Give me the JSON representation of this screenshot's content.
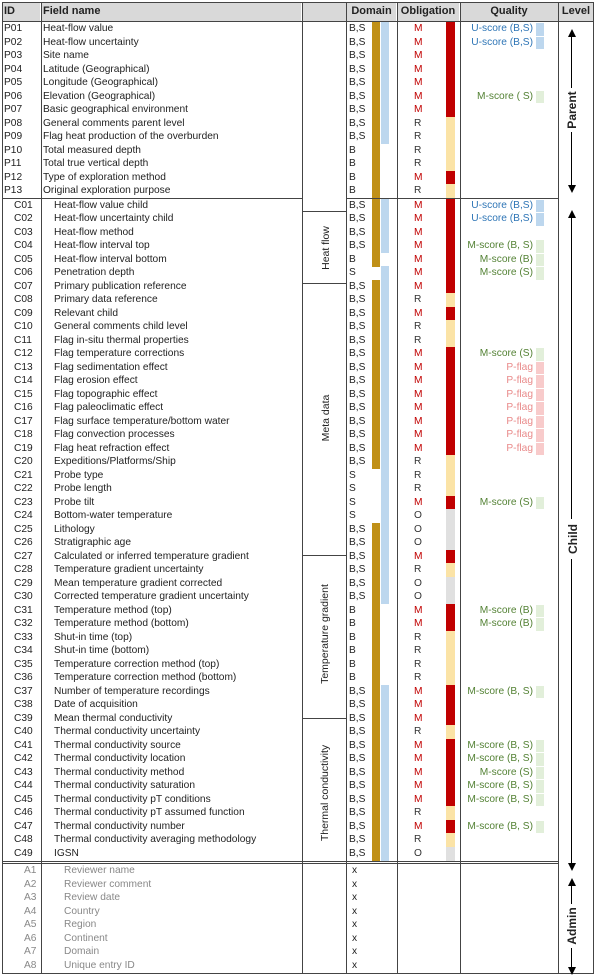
{
  "headers": {
    "id": "ID",
    "field": "Field name",
    "domain": "Domain",
    "obligation": "Obligation",
    "quality": "Quality",
    "level": "Level"
  },
  "groups": {
    "heat_flow": "Heat flow",
    "meta_data": "Meta data",
    "temp_gradient": "Temperature gradient",
    "thermal_cond": "Thermal conductivity"
  },
  "levels": {
    "parent": "Parent",
    "child": "Child",
    "admin": "Admin"
  },
  "colors": {
    "M": "#c00000",
    "R": "#fbe3a6",
    "O": "#e0e0e0",
    "B": "#c09017",
    "S": "#bdd7ee",
    "U": "#bdd7ee",
    "Mscore": "#e2efda",
    "Pflag": "#f8cbcb"
  },
  "rows": [
    {
      "id": "P01",
      "field": "Heat-flow value",
      "domain": "B,S",
      "obl": "M",
      "q": "U-score (B,S)"
    },
    {
      "id": "P02",
      "field": "Heat-flow uncertainty",
      "domain": "B,S",
      "obl": "M",
      "q": "U-score (B,S)"
    },
    {
      "id": "P03",
      "field": "Site name",
      "domain": "B,S",
      "obl": "M",
      "q": ""
    },
    {
      "id": "P04",
      "field": "Latitude (Geographical)",
      "domain": "B,S",
      "obl": "M",
      "q": ""
    },
    {
      "id": "P05",
      "field": "Longitude (Geographical)",
      "domain": "B,S",
      "obl": "M",
      "q": ""
    },
    {
      "id": "P06",
      "field": "Elevation (Geographical)",
      "domain": "B,S",
      "obl": "M",
      "q": "M-score ( S)"
    },
    {
      "id": "P07",
      "field": "Basic geographical environment",
      "domain": "B,S",
      "obl": "M",
      "q": ""
    },
    {
      "id": "P08",
      "field": "General comments parent level",
      "domain": "B,S",
      "obl": "R",
      "q": ""
    },
    {
      "id": "P09",
      "field": "Flag heat production of the overburden",
      "domain": "B,S",
      "obl": "R",
      "q": ""
    },
    {
      "id": "P10",
      "field": "Total measured depth",
      "domain": "B",
      "obl": "R",
      "q": ""
    },
    {
      "id": "P11",
      "field": "Total true vertical depth",
      "domain": "B",
      "obl": "R",
      "q": ""
    },
    {
      "id": "P12",
      "field": "Type of exploration method",
      "domain": "B",
      "obl": "M",
      "q": ""
    },
    {
      "id": "P13",
      "field": "Original exploration purpose",
      "domain": "B",
      "obl": "R",
      "q": ""
    },
    {
      "id": "C01",
      "field": "Heat-flow value child",
      "domain": "B,S",
      "obl": "M",
      "q": "U-score (B,S)"
    },
    {
      "id": "C02",
      "field": "Heat-flow uncertainty child",
      "domain": "B,S",
      "obl": "M",
      "q": "U-score (B,S)"
    },
    {
      "id": "C03",
      "field": "Heat-flow method",
      "domain": "B,S",
      "obl": "M",
      "q": ""
    },
    {
      "id": "C04",
      "field": "Heat-flow interval top",
      "domain": "B,S",
      "obl": "M",
      "q": "M-score (B, S)"
    },
    {
      "id": "C05",
      "field": "Heat-flow interval bottom",
      "domain": "B",
      "obl": "M",
      "q": "M-score (B)"
    },
    {
      "id": "C06",
      "field": "Penetration depth",
      "domain": "S",
      "obl": "M",
      "q": "M-score (S)"
    },
    {
      "id": "C07",
      "field": "Primary publication reference",
      "domain": "B,S",
      "obl": "M",
      "q": ""
    },
    {
      "id": "C08",
      "field": "Primary data reference",
      "domain": "B,S",
      "obl": "R",
      "q": ""
    },
    {
      "id": "C09",
      "field": "Relevant child",
      "domain": "B,S",
      "obl": "M",
      "q": ""
    },
    {
      "id": "C10",
      "field": "General comments child level",
      "domain": "B,S",
      "obl": "R",
      "q": ""
    },
    {
      "id": "C11",
      "field": "Flag in-situ thermal properties",
      "domain": "B,S",
      "obl": "R",
      "q": ""
    },
    {
      "id": "C12",
      "field": "Flag temperature corrections",
      "domain": "B,S",
      "obl": "M",
      "q": "M-score (S)"
    },
    {
      "id": "C13",
      "field": "Flag sedimentation effect",
      "domain": "B,S",
      "obl": "M",
      "q": "P-flag"
    },
    {
      "id": "C14",
      "field": "Flag erosion effect",
      "domain": "B,S",
      "obl": "M",
      "q": "P-flag"
    },
    {
      "id": "C15",
      "field": "Flag topographic effect",
      "domain": "B,S",
      "obl": "M",
      "q": "P-flag"
    },
    {
      "id": "C16",
      "field": "Flag paleoclimatic effect",
      "domain": "B,S",
      "obl": "M",
      "q": "P-flag"
    },
    {
      "id": "C17",
      "field": "Flag surface temperature/bottom water",
      "domain": "B,S",
      "obl": "M",
      "q": "P-flag"
    },
    {
      "id": "C18",
      "field": "Flag convection processes",
      "domain": "B,S",
      "obl": "M",
      "q": "P-flag"
    },
    {
      "id": "C19",
      "field": "Flag heat refraction effect",
      "domain": "B,S",
      "obl": "M",
      "q": "P-flag"
    },
    {
      "id": "C20",
      "field": "Expeditions/Platforms/Ship",
      "domain": "B,S",
      "obl": "R",
      "q": ""
    },
    {
      "id": "C21",
      "field": "Probe type",
      "domain": "S",
      "obl": "R",
      "q": ""
    },
    {
      "id": "C22",
      "field": "Probe length",
      "domain": "S",
      "obl": "R",
      "q": ""
    },
    {
      "id": "C23",
      "field": "Probe tilt",
      "domain": "S",
      "obl": "M",
      "q": "M-score (S)"
    },
    {
      "id": "C24",
      "field": "Bottom-water temperature",
      "domain": "S",
      "obl": "O",
      "q": ""
    },
    {
      "id": "C25",
      "field": "Lithology",
      "domain": "B,S",
      "obl": "O",
      "q": ""
    },
    {
      "id": "C26",
      "field": "Stratigraphic age",
      "domain": "B,S",
      "obl": "O",
      "q": ""
    },
    {
      "id": "C27",
      "field": "Calculated or inferred temperature gradient",
      "domain": "B,S",
      "obl": "M",
      "q": ""
    },
    {
      "id": "C28",
      "field": "Temperature gradient uncertainty",
      "domain": "B,S",
      "obl": "R",
      "q": ""
    },
    {
      "id": "C29",
      "field": "Mean temperature gradient corrected",
      "domain": "B,S",
      "obl": "O",
      "q": ""
    },
    {
      "id": "C30",
      "field": "Corrected temperature gradient uncertainty",
      "domain": "B,S",
      "obl": "O",
      "q": ""
    },
    {
      "id": "C31",
      "field": "Temperature method (top)",
      "domain": "B",
      "obl": "M",
      "q": "M-score (B)"
    },
    {
      "id": "C32",
      "field": "Temperature method (bottom)",
      "domain": "B",
      "obl": "M",
      "q": "M-score (B)"
    },
    {
      "id": "C33",
      "field": "Shut-in time (top)",
      "domain": "B",
      "obl": "R",
      "q": ""
    },
    {
      "id": "C34",
      "field": "Shut-in time (bottom)",
      "domain": "B",
      "obl": "R",
      "q": ""
    },
    {
      "id": "C35",
      "field": "Temperature correction method (top)",
      "domain": "B",
      "obl": "R",
      "q": ""
    },
    {
      "id": "C36",
      "field": "Temperature correction method (bottom)",
      "domain": "B",
      "obl": "R",
      "q": ""
    },
    {
      "id": "C37",
      "field": "Number of temperature recordings",
      "domain": "B,S",
      "obl": "M",
      "q": "M-score (B, S)"
    },
    {
      "id": "C38",
      "field": "Date of acquisition",
      "domain": "B,S",
      "obl": "M",
      "q": ""
    },
    {
      "id": "C39",
      "field": "Mean thermal conductivity",
      "domain": "B,S",
      "obl": "M",
      "q": ""
    },
    {
      "id": "C40",
      "field": "Thermal conductivity uncertainty",
      "domain": "B,S",
      "obl": "R",
      "q": ""
    },
    {
      "id": "C41",
      "field": "Thermal conductivity source",
      "domain": "B,S",
      "obl": "M",
      "q": "M-score (B, S)"
    },
    {
      "id": "C42",
      "field": "Thermal conductivity location",
      "domain": "B,S",
      "obl": "M",
      "q": "M-score (B, S)"
    },
    {
      "id": "C43",
      "field": "Thermal conductivity method",
      "domain": "B,S",
      "obl": "M",
      "q": "M-score (S)"
    },
    {
      "id": "C44",
      "field": "Thermal conductivity saturation",
      "domain": "B,S",
      "obl": "M",
      "q": "M-score (B, S)"
    },
    {
      "id": "C45",
      "field": "Thermal conductivity pT conditions",
      "domain": "B,S",
      "obl": "M",
      "q": "M-score (B, S)"
    },
    {
      "id": "C46",
      "field": "Thermal conductivity pT assumed function",
      "domain": "B,S",
      "obl": "R",
      "q": ""
    },
    {
      "id": "C47",
      "field": "Thermal conductivity number",
      "domain": "B,S",
      "obl": "M",
      "q": "M-score (B, S)"
    },
    {
      "id": "C48",
      "field": "Thermal conductivity averaging methodology",
      "domain": "B,S",
      "obl": "R",
      "q": ""
    },
    {
      "id": "C49",
      "field": "IGSN",
      "domain": "B,S",
      "obl": "O",
      "q": ""
    },
    {
      "id": "A1",
      "field": "Reviewer name",
      "domain": "x",
      "obl": "",
      "q": ""
    },
    {
      "id": "A2",
      "field": "Reviewer comment",
      "domain": "x",
      "obl": "",
      "q": ""
    },
    {
      "id": "A3",
      "field": "Review date",
      "domain": "x",
      "obl": "",
      "q": ""
    },
    {
      "id": "A4",
      "field": "Country",
      "domain": "x",
      "obl": "",
      "q": ""
    },
    {
      "id": "A5",
      "field": "Region",
      "domain": "x",
      "obl": "",
      "q": ""
    },
    {
      "id": "A6",
      "field": "Continent",
      "domain": "x",
      "obl": "",
      "q": ""
    },
    {
      "id": "A7",
      "field": "Domain",
      "domain": "x",
      "obl": "",
      "q": ""
    },
    {
      "id": "A8",
      "field": "Unique entry ID",
      "domain": "x",
      "obl": "",
      "q": ""
    }
  ]
}
